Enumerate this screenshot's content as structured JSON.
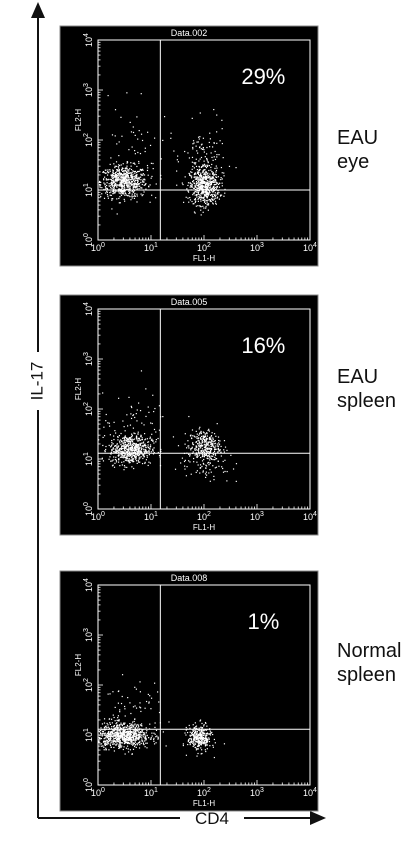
{
  "colors": {
    "background": "#ffffff",
    "plot_bg": "#000000",
    "plot_fg": "#ffffff",
    "ink": "#111111"
  },
  "figure": {
    "y_axis_title": "IL-17",
    "x_axis_title": "CD4"
  },
  "chart_data": [
    {
      "type": "scatter",
      "title": "Data.002",
      "xlabel": "FL1-H",
      "ylabel": "FL2-H",
      "x_scale": "log",
      "y_scale": "log",
      "xlim": [
        1,
        10000
      ],
      "ylim": [
        1,
        10000
      ],
      "x_tick_labels": [
        "10^0",
        "10^1",
        "10^2",
        "10^3",
        "10^4"
      ],
      "y_tick_labels": [
        "10^0",
        "10^1",
        "10^2",
        "10^3",
        "10^4"
      ],
      "quadrant_gate": {
        "x": 15,
        "y": 10
      },
      "annotation": "29%",
      "side_label": [
        "EAU",
        "eye"
      ],
      "clusters": [
        {
          "center": [
            3,
            15
          ],
          "spread": [
            0.22,
            0.16
          ],
          "count": 650
        },
        {
          "center": [
            100,
            12
          ],
          "spread": [
            0.14,
            0.18
          ],
          "count": 560
        },
        {
          "center": [
            100,
            40
          ],
          "spread": [
            0.2,
            0.35
          ],
          "count": 120
        },
        {
          "center": [
            5,
            60
          ],
          "spread": [
            0.35,
            0.45
          ],
          "count": 60
        }
      ]
    },
    {
      "type": "scatter",
      "title": "Data.005",
      "xlabel": "FL1-H",
      "ylabel": "FL2-H",
      "x_scale": "log",
      "y_scale": "log",
      "xlim": [
        1,
        10000
      ],
      "ylim": [
        1,
        10000
      ],
      "x_tick_labels": [
        "10^0",
        "10^1",
        "10^2",
        "10^3",
        "10^4"
      ],
      "y_tick_labels": [
        "10^0",
        "10^1",
        "10^2",
        "10^3",
        "10^4"
      ],
      "quadrant_gate": {
        "x": 15,
        "y": 13
      },
      "annotation": "16%",
      "side_label": [
        "EAU",
        "spleen"
      ],
      "clusters": [
        {
          "center": [
            4,
            16
          ],
          "spread": [
            0.2,
            0.15
          ],
          "count": 560
        },
        {
          "center": [
            100,
            18
          ],
          "spread": [
            0.15,
            0.17
          ],
          "count": 330
        },
        {
          "center": [
            5,
            50
          ],
          "spread": [
            0.3,
            0.3
          ],
          "count": 70
        },
        {
          "center": [
            100,
            8
          ],
          "spread": [
            0.25,
            0.2
          ],
          "count": 60
        }
      ]
    },
    {
      "type": "scatter",
      "title": "Data.008",
      "xlabel": "FL1-H",
      "ylabel": "FL2-H",
      "x_scale": "log",
      "y_scale": "log",
      "xlim": [
        1,
        10000
      ],
      "ylim": [
        1,
        10000
      ],
      "x_tick_labels": [
        "10^0",
        "10^1",
        "10^2",
        "10^3",
        "10^4"
      ],
      "y_tick_labels": [
        "10^0",
        "10^1",
        "10^2",
        "10^3",
        "10^4"
      ],
      "quadrant_gate": {
        "x": 15,
        "y": 13
      },
      "annotation": "1%",
      "side_label": [
        "Normal",
        "spleen"
      ],
      "clusters": [
        {
          "center": [
            3,
            10
          ],
          "spread": [
            0.25,
            0.12
          ],
          "count": 750
        },
        {
          "center": [
            80,
            9
          ],
          "spread": [
            0.11,
            0.13
          ],
          "count": 330
        },
        {
          "center": [
            4,
            30
          ],
          "spread": [
            0.3,
            0.3
          ],
          "count": 70
        }
      ]
    }
  ]
}
